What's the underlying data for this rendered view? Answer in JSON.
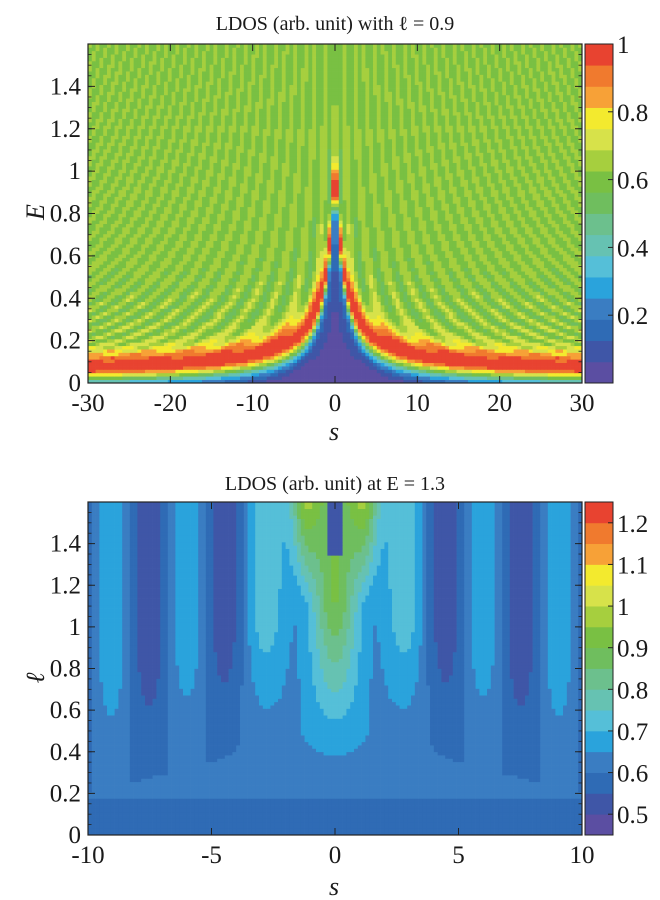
{
  "chart_data": [
    {
      "type": "heatmap",
      "title": "LDOS (arb. unit) with ℓ = 0.9",
      "xlabel": "s",
      "ylabel": "E",
      "xlim": [
        -30,
        30
      ],
      "ylim": [
        0,
        1.6
      ],
      "x_ticks": [
        "-30",
        "-20",
        "-10",
        "0",
        "10",
        "20",
        "30"
      ],
      "x_tick_values": [
        -30,
        -20,
        -10,
        0,
        10,
        20,
        30
      ],
      "y_ticks": [
        "0",
        "0.2",
        "0.4",
        "0.6",
        "0.8",
        "1",
        "1.2",
        "1.4"
      ],
      "y_tick_values": [
        0,
        0.2,
        0.4,
        0.6,
        0.8,
        1.0,
        1.2,
        1.4
      ],
      "colorbar": {
        "min": 0,
        "max": 1.0,
        "levels": 16,
        "labels": [
          "0.2",
          "0.4",
          "0.6",
          "0.8",
          "1"
        ],
        "label_values": [
          0.2,
          0.4,
          0.6,
          0.8,
          1.0
        ]
      }
    },
    {
      "type": "heatmap",
      "title": "LDOS (arb. unit) at E = 1.3",
      "xlabel": "s",
      "ylabel": "ℓ",
      "xlim": [
        -10,
        10
      ],
      "ylim": [
        0,
        1.6
      ],
      "x_ticks": [
        "-10",
        "-5",
        "0",
        "5",
        "10"
      ],
      "x_tick_values": [
        -10,
        -5,
        0,
        5,
        10
      ],
      "y_ticks": [
        "0",
        "0.2",
        "0.4",
        "0.6",
        "0.8",
        "1",
        "1.2",
        "1.4"
      ],
      "y_tick_values": [
        0,
        0.2,
        0.4,
        0.6,
        0.8,
        1.0,
        1.2,
        1.4
      ],
      "colorbar": {
        "min": 0.45,
        "max": 1.25,
        "levels": 16,
        "labels": [
          "0.5",
          "0.6",
          "0.7",
          "0.8",
          "0.9",
          "1",
          "1.1",
          "1.2"
        ],
        "label_values": [
          0.5,
          0.6,
          0.7,
          0.8,
          0.9,
          1.0,
          1.1,
          1.2
        ]
      }
    }
  ],
  "palette": [
    "#5b4ea2",
    "#3f56a7",
    "#2f6bb5",
    "#3a7dc2",
    "#2aa3dc",
    "#55bfd8",
    "#66c2b2",
    "#6cc08d",
    "#6fbe5e",
    "#79c043",
    "#a6cf3e",
    "#d7e24a",
    "#f3ea2e",
    "#f7a137",
    "#f07a2e",
    "#e84330",
    "#e52422"
  ]
}
